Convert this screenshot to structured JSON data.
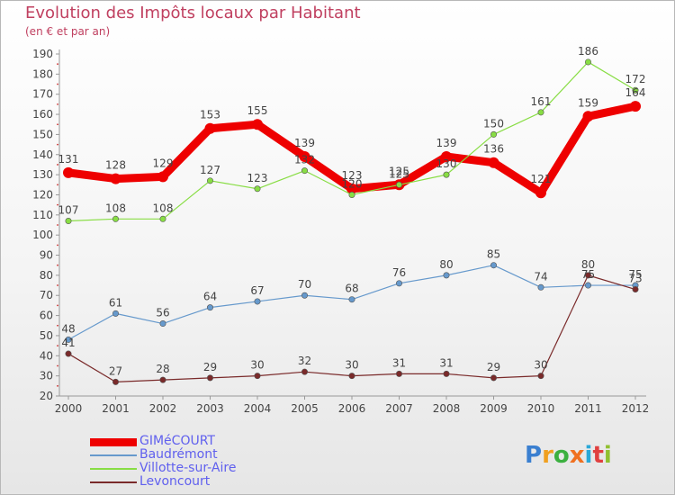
{
  "title": "Evolution des Impôts locaux par Habitant",
  "subtitle": "(en € et par an)",
  "brand": {
    "letters": [
      "P",
      "r",
      "o",
      "x",
      "i",
      "t",
      "i"
    ],
    "colors": [
      "#3a7fd0",
      "#f0a020",
      "#3cb040",
      "#f07020",
      "#2aa8d8",
      "#e04040",
      "#90c030"
    ]
  },
  "chart_data": {
    "type": "line",
    "title": "Evolution des Impôts locaux par Habitant",
    "ylabel": "(en € et par an)",
    "categories": [
      "2000",
      "2001",
      "2002",
      "2003",
      "2004",
      "2005",
      "2006",
      "2007",
      "2008",
      "2009",
      "2010",
      "2011",
      "2012"
    ],
    "ylim": [
      20,
      190
    ],
    "yticks": [
      20,
      30,
      40,
      50,
      60,
      70,
      80,
      90,
      100,
      110,
      120,
      130,
      140,
      150,
      160,
      170,
      180,
      190
    ],
    "grid": false,
    "series": [
      {
        "name": "GIMéCOURT",
        "color": "#ee0000",
        "values": [
          131,
          128,
          129,
          153,
          155,
          139,
          123,
          125,
          139,
          136,
          121,
          159,
          164
        ],
        "labels": [
          "131",
          "128",
          "129",
          "153",
          "155",
          "139",
          "123",
          "125",
          "139",
          "136",
          "121",
          "159",
          "164"
        ],
        "emphasis": "thick"
      },
      {
        "name": "Baudrémont",
        "color": "#6699cc",
        "values": [
          48,
          61,
          56,
          64,
          67,
          70,
          68,
          76,
          80,
          85,
          74,
          75,
          75
        ],
        "labels": [
          "48",
          "61",
          "56",
          "64",
          "67",
          "70",
          "68",
          "76",
          "80",
          "85",
          "74",
          "75",
          "75"
        ],
        "emphasis": "thin"
      },
      {
        "name": "Villotte-sur-Aire",
        "color": "#88dd44",
        "values": [
          107,
          108,
          108,
          127,
          123,
          132,
          120,
          125,
          130,
          150,
          161,
          186,
          172
        ],
        "labels": [
          "107",
          "108",
          "108",
          "127",
          "123",
          "132",
          "120",
          "125",
          "130",
          "150",
          "161",
          "186",
          "172"
        ],
        "emphasis": "thin"
      },
      {
        "name": "Levoncourt",
        "color": "#7a2a2a",
        "values": [
          41,
          27,
          28,
          29,
          30,
          32,
          30,
          31,
          31,
          29,
          30,
          80,
          73
        ],
        "labels": [
          "41",
          "27",
          "28",
          "29",
          "30",
          "32",
          "30",
          "31",
          "31",
          "29",
          "30",
          "80",
          "73"
        ],
        "emphasis": "thin"
      }
    ]
  }
}
